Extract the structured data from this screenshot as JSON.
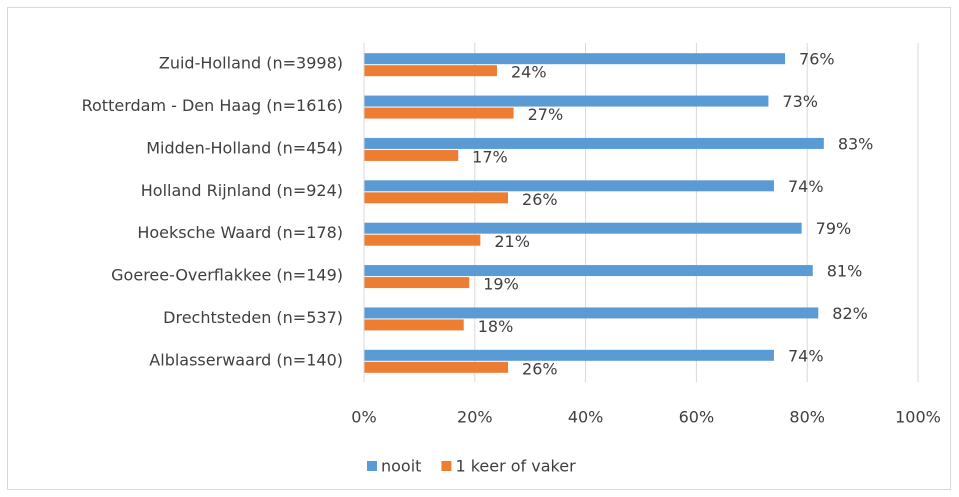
{
  "chart_data": {
    "type": "bar",
    "orientation": "horizontal",
    "categories": [
      "Zuid-Holland (n=3998)",
      "Rotterdam - Den Haag (n=1616)",
      "Midden-Holland (n=454)",
      "Holland Rijnland (n=924)",
      "Hoeksche Waard (n=178)",
      "Goeree-Overflakkee (n=149)",
      "Drechtsteden (n=537)",
      "Alblasserwaard (n=140)"
    ],
    "series": [
      {
        "name": "nooit",
        "color": "#5b9bd5",
        "values": [
          76,
          73,
          83,
          74,
          79,
          81,
          82,
          74
        ],
        "value_labels": [
          "76%",
          "73%",
          "83%",
          "74%",
          "79%",
          "81%",
          "82%",
          "74%"
        ]
      },
      {
        "name": "1 keer of vaker",
        "color": "#ed7d31",
        "values": [
          24,
          27,
          17,
          26,
          21,
          19,
          18,
          26
        ],
        "value_labels": [
          "24%",
          "27%",
          "17%",
          "26%",
          "21%",
          "19%",
          "18%",
          "26%"
        ]
      }
    ],
    "xlim": [
      0,
      100
    ],
    "xticks": [
      {
        "value": 0,
        "label": "0%"
      },
      {
        "value": 20,
        "label": "20%"
      },
      {
        "value": 40,
        "label": "40%"
      },
      {
        "value": 60,
        "label": "60%"
      },
      {
        "value": 80,
        "label": "80%"
      },
      {
        "value": 100,
        "label": "100%"
      }
    ],
    "grid": true,
    "legend": "bottom"
  }
}
